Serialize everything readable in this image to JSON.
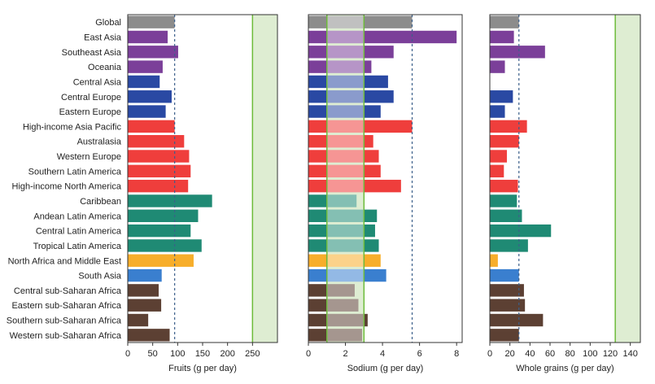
{
  "colors": {
    "global": "#8c8c8c",
    "east_asia_group": "#7b3f99",
    "central_europe_group": "#2a49a3",
    "high_income": "#ef3e3c",
    "latin_america": "#1f8a74",
    "north_africa": "#f7ae2b",
    "south_asia": "#3a7fcf",
    "sub_saharan": "#5c4033",
    "reference_line": "#6dbb3a",
    "reference_band": "#deedd2",
    "mean_line": "#3b5f8a"
  },
  "chart_data": [
    {
      "type": "bar",
      "orientation": "horizontal",
      "title": "",
      "xlabel": "Fruits (g per day)",
      "xlim": [
        0,
        300
      ],
      "xticks": [
        "0",
        "50",
        "100",
        "150",
        "200",
        "250"
      ],
      "categories": [
        "Global",
        "East Asia",
        "Southeast Asia",
        "Oceania",
        "Central Asia",
        "Central Europe",
        "Eastern Europe",
        "High-income Asia Pacific",
        "Australasia",
        "Western Europe",
        "Southern Latin America",
        "High-income North America",
        "Caribbean",
        "Andean Latin America",
        "Central Latin America",
        "Tropical Latin America",
        "North Africa and Middle East",
        "South Asia",
        "Central sub-Saharan Africa",
        "Eastern sub-Saharan Africa",
        "Southern sub-Saharan Africa",
        "Western sub-Saharan Africa"
      ],
      "values": [
        94,
        80,
        101,
        70,
        64,
        88,
        76,
        94,
        113,
        123,
        126,
        121,
        169,
        141,
        126,
        148,
        132,
        68,
        62,
        67,
        41,
        84
      ],
      "global_mean": 94,
      "optimal_range": [
        250,
        300
      ]
    },
    {
      "type": "bar",
      "orientation": "horizontal",
      "title": "",
      "xlabel": "Sodium (g per day)",
      "xlim": [
        0,
        8.3
      ],
      "xticks": [
        "0",
        "2",
        "4",
        "6",
        "8"
      ],
      "categories": [
        "Global",
        "East Asia",
        "Southeast Asia",
        "Oceania",
        "Central Asia",
        "Central Europe",
        "Eastern Europe",
        "High-income Asia Pacific",
        "Australasia",
        "Western Europe",
        "Southern Latin America",
        "High-income North America",
        "Caribbean",
        "Andean Latin America",
        "Central Latin America",
        "Tropical Latin America",
        "North Africa and Middle East",
        "South Asia",
        "Central sub-Saharan Africa",
        "Eastern sub-Saharan Africa",
        "Southern sub-Saharan Africa",
        "Western sub-Saharan Africa"
      ],
      "values": [
        5.6,
        8.0,
        4.6,
        3.4,
        4.3,
        4.6,
        3.9,
        5.6,
        3.5,
        3.8,
        3.9,
        5.0,
        2.6,
        3.7,
        3.6,
        3.8,
        3.9,
        4.2,
        2.5,
        2.7,
        3.2,
        2.9
      ],
      "global_mean": 5.6,
      "optimal_range": [
        1,
        3
      ]
    },
    {
      "type": "bar",
      "orientation": "horizontal",
      "title": "",
      "xlabel": "Whole grains (g per day)",
      "xlim": [
        0,
        150
      ],
      "xticks": [
        "0",
        "20",
        "40",
        "60",
        "80",
        "100",
        "120",
        "140"
      ],
      "categories": [
        "Global",
        "East Asia",
        "Southeast Asia",
        "Oceania",
        "Central Asia",
        "Central Europe",
        "Eastern Europe",
        "High-income Asia Pacific",
        "Australasia",
        "Western Europe",
        "Southern Latin America",
        "High-income North America",
        "Caribbean",
        "Andean Latin America",
        "Central Latin America",
        "Tropical Latin America",
        "North Africa and Middle East",
        "South Asia",
        "Central sub-Saharan Africa",
        "Eastern sub-Saharan Africa",
        "Southern sub-Saharan Africa",
        "Western sub-Saharan Africa"
      ],
      "values": [
        29,
        24,
        55,
        15,
        0,
        23,
        15,
        37,
        29,
        17,
        14,
        28,
        27,
        32,
        61,
        38,
        8,
        29,
        34,
        35,
        53,
        29
      ],
      "global_mean": 29,
      "optimal_range": [
        125,
        150
      ]
    }
  ]
}
